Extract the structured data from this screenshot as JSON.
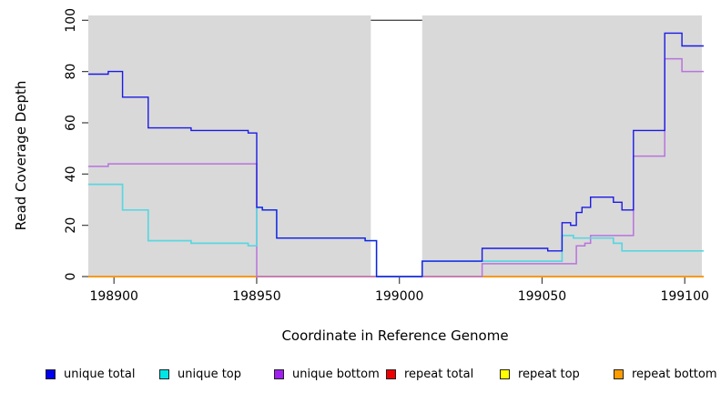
{
  "chart_data": {
    "type": "line",
    "title": "",
    "xlabel": "Coordinate in Reference Genome",
    "ylabel": "Read Coverage Depth",
    "xlim": [
      198891,
      199106
    ],
    "ylim": [
      0,
      100
    ],
    "x_ticks": [
      198900,
      198950,
      199000,
      199050,
      199100
    ],
    "y_ticks": [
      0,
      20,
      40,
      60,
      80,
      100
    ],
    "grid": false,
    "plot_bg_color": "#d9d9d9",
    "step_mode": "after",
    "masked_region": {
      "x_start": 198990,
      "x_end": 199008,
      "top_value": 100,
      "fill": "#ffffff",
      "top_line_color": "#4d4d4d"
    },
    "series": [
      {
        "name": "repeat total",
        "color": "#dd2020",
        "width": 1.4,
        "points": [
          [
            198891,
            0
          ],
          [
            199106,
            0
          ]
        ]
      },
      {
        "name": "repeat top",
        "color": "#f2e243",
        "width": 1.4,
        "points": [
          [
            198891,
            0
          ],
          [
            199106,
            0
          ]
        ]
      },
      {
        "name": "repeat bottom",
        "color": "#ff9100",
        "width": 1.6,
        "points": [
          [
            198891,
            0
          ],
          [
            199106,
            0
          ]
        ]
      },
      {
        "name": "unique bottom",
        "color": "#b873dd",
        "width": 1.5,
        "points": [
          [
            198891,
            43
          ],
          [
            198898,
            44
          ],
          [
            198950,
            0
          ],
          [
            199029,
            5
          ],
          [
            199062,
            12
          ],
          [
            199065,
            13
          ],
          [
            199067,
            16
          ],
          [
            199082,
            47
          ],
          [
            199093,
            85
          ],
          [
            199099,
            80
          ],
          [
            199106,
            80
          ]
        ]
      },
      {
        "name": "unique top",
        "color": "#5bd6e0",
        "width": 1.7,
        "points": [
          [
            198891,
            36
          ],
          [
            198903,
            26
          ],
          [
            198912,
            14
          ],
          [
            198927,
            13
          ],
          [
            198947,
            12
          ],
          [
            198950,
            27
          ],
          [
            198952,
            26
          ],
          [
            198957,
            15
          ],
          [
            198988,
            14
          ],
          [
            198992,
            0
          ],
          [
            199008,
            6
          ],
          [
            199057,
            16
          ],
          [
            199061,
            15
          ],
          [
            199075,
            13
          ],
          [
            199078,
            10
          ],
          [
            199106,
            10
          ]
        ]
      },
      {
        "name": "unique total",
        "color": "#1a1ae6",
        "width": 1.4,
        "points": [
          [
            198891,
            79
          ],
          [
            198898,
            80
          ],
          [
            198903,
            70
          ],
          [
            198912,
            58
          ],
          [
            198927,
            57
          ],
          [
            198947,
            56
          ],
          [
            198950,
            27
          ],
          [
            198952,
            26
          ],
          [
            198957,
            15
          ],
          [
            198988,
            14
          ],
          [
            198992,
            0
          ],
          [
            199008,
            6
          ],
          [
            199029,
            11
          ],
          [
            199052,
            10
          ],
          [
            199057,
            21
          ],
          [
            199060,
            20
          ],
          [
            199062,
            25
          ],
          [
            199064,
            27
          ],
          [
            199067,
            31
          ],
          [
            199075,
            29
          ],
          [
            199078,
            26
          ],
          [
            199082,
            57
          ],
          [
            199093,
            95
          ],
          [
            199099,
            90
          ],
          [
            199106,
            90
          ]
        ]
      }
    ]
  },
  "legend": {
    "items": [
      {
        "label": "unique total",
        "color": "#0000ee"
      },
      {
        "label": "unique top",
        "color": "#00e5e5"
      },
      {
        "label": "unique bottom",
        "color": "#a020f0"
      },
      {
        "label": "repeat total",
        "color": "#ee0000"
      },
      {
        "label": "repeat top",
        "color": "#ffff00"
      },
      {
        "label": "repeat bottom",
        "color": "#ff9d00"
      }
    ]
  }
}
